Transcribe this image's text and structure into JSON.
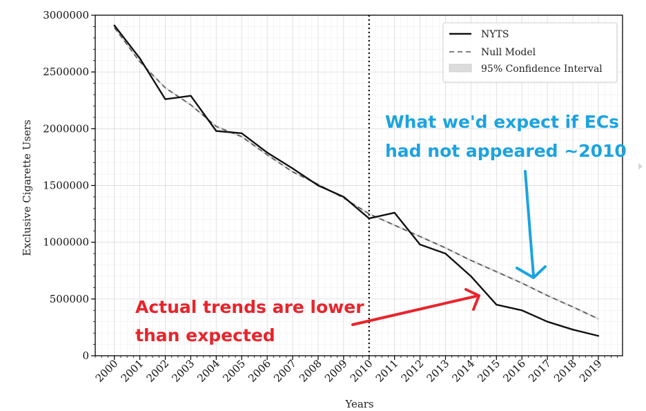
{
  "colors": {
    "series_line": "#111111",
    "null_model": "#555555",
    "confidence": "#cfcfcf",
    "annotation_blue": "#1ba3e0",
    "annotation_red": "#e8242c",
    "grid": "#e6e6e6"
  },
  "chart_data": {
    "type": "line",
    "title": "",
    "xlabel": "Years",
    "ylabel": "Exclusive Cigarette Users",
    "x": [
      2000,
      2001,
      2002,
      2003,
      2004,
      2005,
      2006,
      2007,
      2008,
      2009,
      2010,
      2011,
      2012,
      2013,
      2014,
      2015,
      2016,
      2017,
      2018,
      2019
    ],
    "x_tick_labels": [
      "2000",
      "2001",
      "2002",
      "2003",
      "2004",
      "2005",
      "2006",
      "2007",
      "2008",
      "2009",
      "2010",
      "2011",
      "2012",
      "2013",
      "2014",
      "2015",
      "2016",
      "2017",
      "2018",
      "2019"
    ],
    "xlim": [
      1999.25,
      2019.95
    ],
    "ylim": [
      0,
      3000000
    ],
    "y_ticks": [
      0,
      500000,
      1000000,
      1500000,
      2000000,
      2500000,
      3000000
    ],
    "y_tick_labels": [
      "0",
      "500000",
      "1000000",
      "1500000",
      "2000000",
      "2500000",
      "3000000"
    ],
    "grid": true,
    "legend_position": "top-right",
    "vertical_line": {
      "x": 2010,
      "style": "dotted"
    },
    "series": [
      {
        "name": "NYTS",
        "style": "solid",
        "x": [
          2000,
          2001,
          2002,
          2003,
          2004,
          2005,
          2006,
          2007,
          2008,
          2009,
          2010,
          2011,
          2012,
          2013,
          2014,
          2015,
          2016,
          2017,
          2018,
          2019
        ],
        "values": [
          2910000,
          2620000,
          2260000,
          2290000,
          1980000,
          1960000,
          1790000,
          1650000,
          1500000,
          1400000,
          1210000,
          1260000,
          980000,
          900000,
          700000,
          450000,
          400000,
          300000,
          230000,
          175000
        ]
      },
      {
        "name": "Null Model",
        "style": "dashed",
        "x": [
          2000,
          2001,
          2002,
          2003,
          2004,
          2005,
          2006,
          2007,
          2008,
          2009,
          2010,
          2011,
          2012,
          2013,
          2014,
          2015,
          2016,
          2017,
          2018,
          2019
        ],
        "values": [
          2890000,
          2590000,
          2360000,
          2210000,
          2020000,
          1930000,
          1770000,
          1620000,
          1510000,
          1390000,
          1250000,
          1150000,
          1050000,
          950000,
          840000,
          740000,
          640000,
          530000,
          430000,
          325000
        ]
      },
      {
        "name": "95% Confidence Interval",
        "style": "band",
        "x": [
          2000,
          2001,
          2002,
          2003,
          2004,
          2005,
          2006,
          2007,
          2008,
          2009,
          2010,
          2011,
          2012,
          2013,
          2014,
          2015,
          2016,
          2017,
          2018,
          2019
        ],
        "lower": [
          2880000,
          2580000,
          2350000,
          2200000,
          2010000,
          1920000,
          1760000,
          1610000,
          1500000,
          1380000,
          1240000,
          1140000,
          1040000,
          940000,
          830000,
          730000,
          630000,
          520000,
          420000,
          315000
        ],
        "upper": [
          2900000,
          2600000,
          2370000,
          2220000,
          2030000,
          1940000,
          1780000,
          1630000,
          1520000,
          1400000,
          1260000,
          1160000,
          1060000,
          960000,
          850000,
          750000,
          650000,
          540000,
          440000,
          335000
        ]
      }
    ],
    "annotations": [
      {
        "id": "expected",
        "lines": [
          "What we'd expect if ECs",
          "had not appeared ~2010"
        ],
        "color": "blue"
      },
      {
        "id": "actual",
        "lines": [
          "Actual trends are lower",
          "than expected"
        ],
        "color": "red"
      }
    ]
  }
}
